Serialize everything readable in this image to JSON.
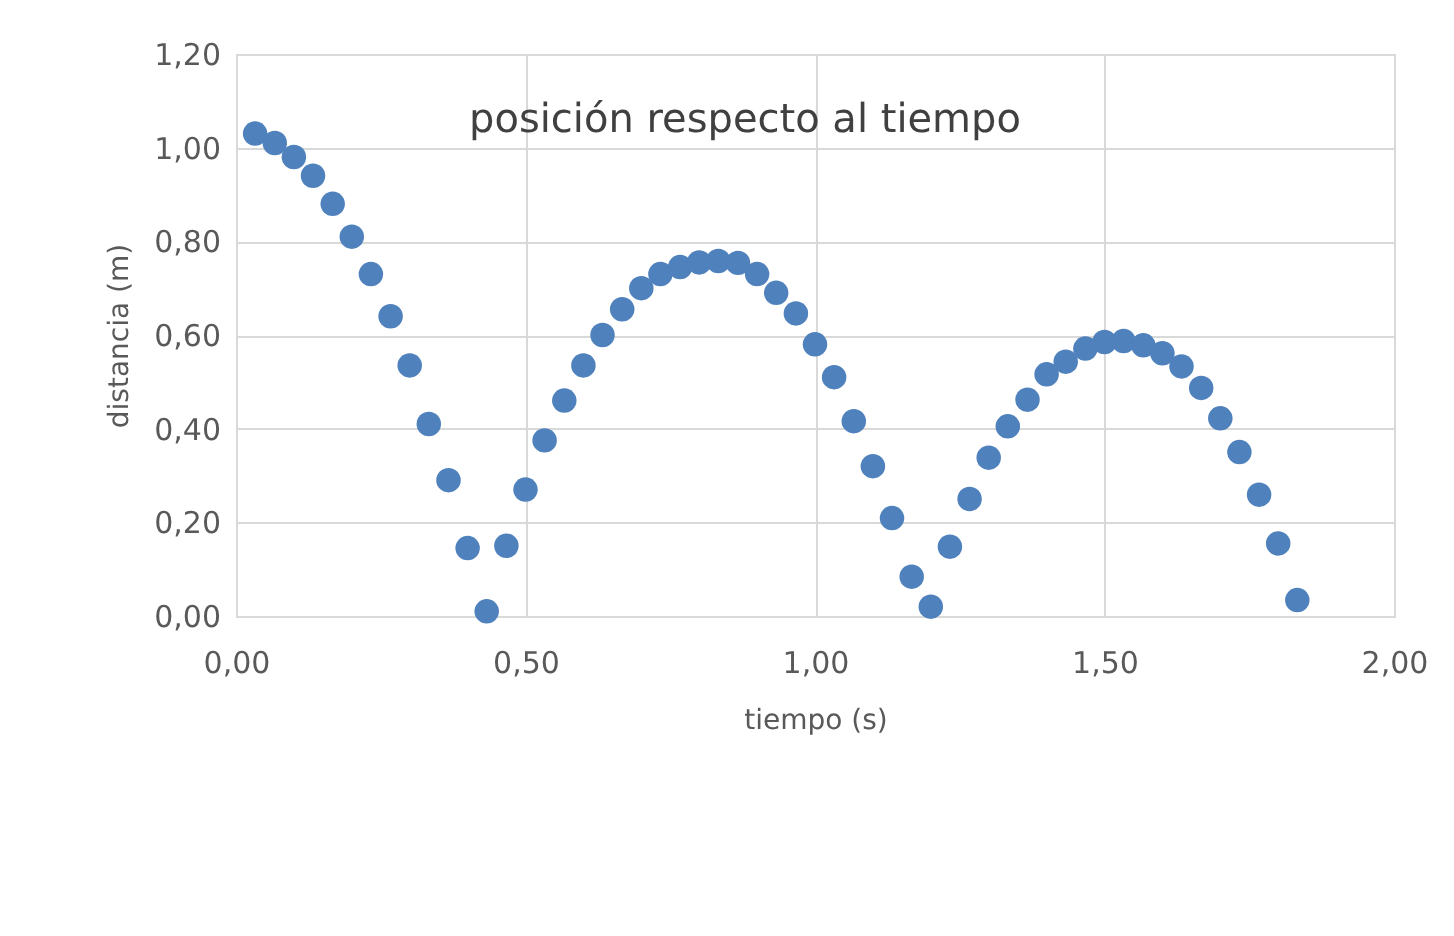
{
  "chart_data": {
    "type": "scatter",
    "title": "posición respecto al tiempo",
    "xlabel": "tiempo (s)",
    "ylabel": "distancia (m)",
    "x": [
      0.033,
      0.067,
      0.1,
      0.133,
      0.167,
      0.2,
      0.233,
      0.267,
      0.3,
      0.333,
      0.367,
      0.4,
      0.433,
      0.467,
      0.5,
      0.533,
      0.567,
      0.6,
      0.633,
      0.667,
      0.7,
      0.733,
      0.767,
      0.8,
      0.833,
      0.867,
      0.9,
      0.933,
      0.967,
      1.0,
      1.033,
      1.067,
      1.1,
      1.133,
      1.167,
      1.2,
      1.233,
      1.267,
      1.3,
      1.333,
      1.367,
      1.4,
      1.433,
      1.467,
      1.5,
      1.533,
      1.567,
      1.6,
      1.633,
      1.667,
      1.7,
      1.733,
      1.767,
      1.8,
      1.833
    ],
    "series": [
      {
        "color": "#4f81bd",
        "values": [
          1.03,
          1.01,
          0.98,
          0.94,
          0.88,
          0.81,
          0.73,
          0.64,
          0.535,
          0.41,
          0.29,
          0.145,
          0.01,
          0.15,
          0.27,
          0.375,
          0.46,
          0.535,
          0.6,
          0.655,
          0.7,
          0.73,
          0.745,
          0.755,
          0.758,
          0.754,
          0.73,
          0.69,
          0.646,
          0.58,
          0.51,
          0.416,
          0.32,
          0.209,
          0.084,
          0.02,
          0.148,
          0.25,
          0.338,
          0.405,
          0.462,
          0.516,
          0.543,
          0.571,
          0.585,
          0.587,
          0.578,
          0.561,
          0.533,
          0.487,
          0.422,
          0.35,
          0.259,
          0.155,
          0.034
        ]
      }
    ],
    "xlim": [
      0,
      2
    ],
    "ylim": [
      0,
      1.2
    ],
    "xticks": [
      {
        "value": 0,
        "label": "0,00"
      },
      {
        "value": 0.5,
        "label": "0,50"
      },
      {
        "value": 1,
        "label": "1,00"
      },
      {
        "value": 1.5,
        "label": "1,50"
      },
      {
        "value": 2,
        "label": "2,00"
      }
    ],
    "yticks": [
      {
        "value": 0,
        "label": "0,00"
      },
      {
        "value": 0.2,
        "label": "0,20"
      },
      {
        "value": 0.4,
        "label": "0,40"
      },
      {
        "value": 0.6,
        "label": "0,60"
      },
      {
        "value": 0.8,
        "label": "0,80"
      },
      {
        "value": 1,
        "label": "1,00"
      },
      {
        "value": 1.2,
        "label": "1,20"
      }
    ],
    "grid": true,
    "legend": false,
    "marker": "circle"
  }
}
